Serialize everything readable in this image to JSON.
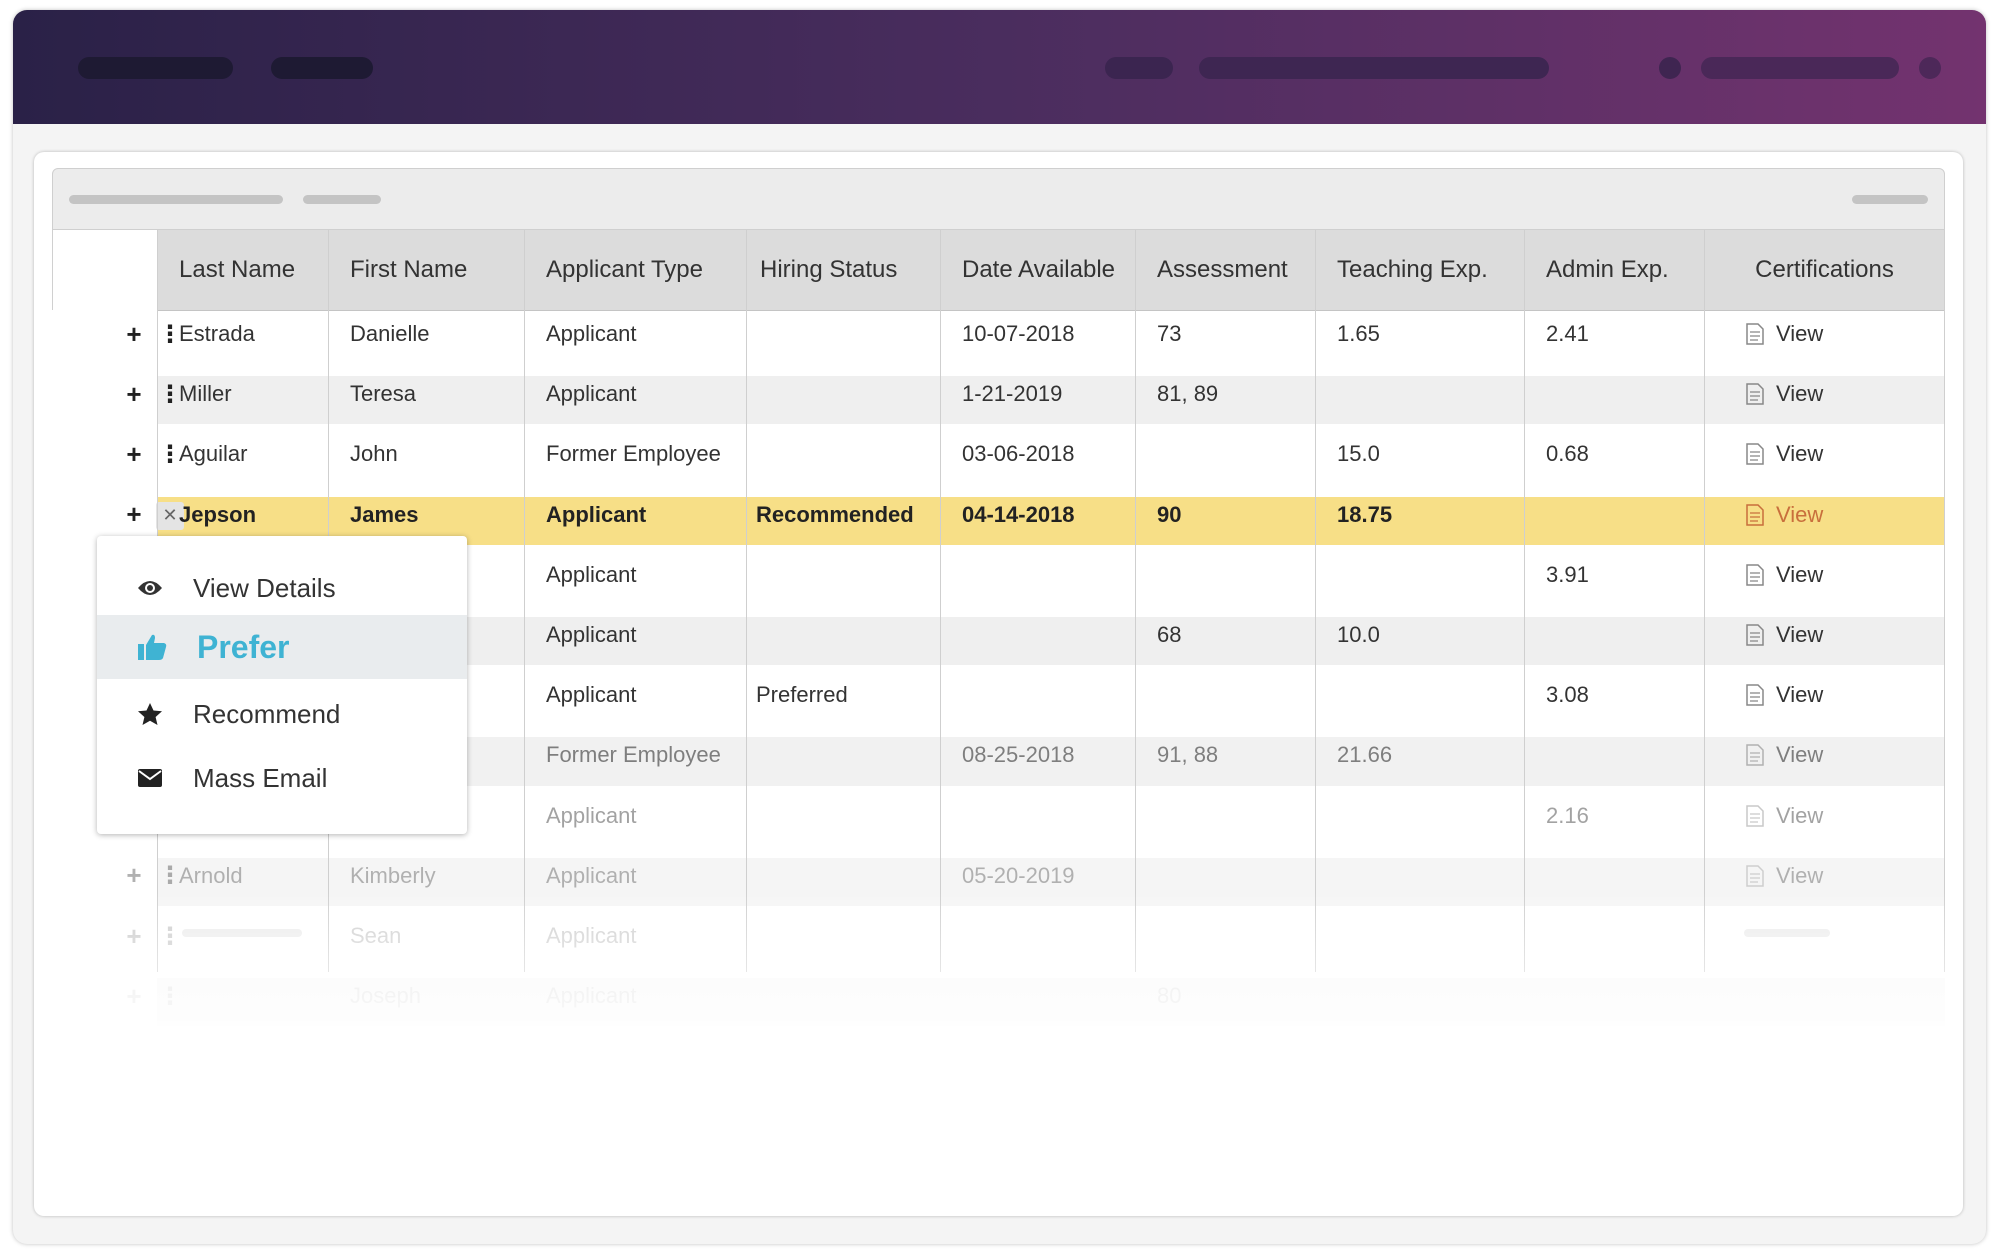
{
  "table": {
    "columns": [
      "Last Name",
      "First Name",
      "Applicant Type",
      "Hiring Status",
      "Date Available",
      "Assessment",
      "Teaching Exp.",
      "Admin Exp.",
      "Certifications"
    ],
    "rows": [
      [
        "Estrada",
        "Danielle",
        "Applicant",
        null,
        "10-07-2018",
        "73",
        "1.65",
        "2.41",
        "View"
      ],
      [
        "Miller",
        "Teresa",
        "Applicant",
        null,
        "1-21-2019",
        "81, 89",
        null,
        null,
        "View"
      ],
      [
        "Aguilar",
        "John",
        "Former Employee",
        null,
        "03-06-2018",
        null,
        "15.0",
        "0.68",
        "View"
      ],
      [
        "Jepson",
        "James",
        "Applicant",
        "Recommended",
        "04-14-2018",
        "90",
        "18.75",
        null,
        "View"
      ],
      [
        null,
        null,
        "Applicant",
        null,
        null,
        null,
        null,
        "3.91",
        "View"
      ],
      [
        null,
        null,
        "Applicant",
        null,
        null,
        "68",
        "10.0",
        null,
        "View"
      ],
      [
        null,
        null,
        "Applicant",
        "Preferred",
        null,
        null,
        null,
        "3.08",
        "View"
      ],
      [
        null,
        null,
        "Former Employee",
        null,
        "08-25-2018",
        "91, 88",
        "21.66",
        null,
        "View"
      ],
      [
        null,
        null,
        "Applicant",
        null,
        null,
        null,
        null,
        "2.16",
        "View"
      ],
      [
        "Arnold",
        "Kimberly",
        "Applicant",
        null,
        "05-20-2019",
        null,
        null,
        null,
        "View"
      ],
      [
        null,
        "Sean",
        "Applicant",
        null,
        null,
        null,
        null,
        null,
        null
      ],
      [
        null,
        "Joseph",
        "Applicant",
        null,
        null,
        "80",
        null,
        null,
        null
      ]
    ]
  },
  "menu": {
    "items": [
      "View Details",
      "Prefer",
      "Recommend",
      "Mass Email"
    ]
  }
}
